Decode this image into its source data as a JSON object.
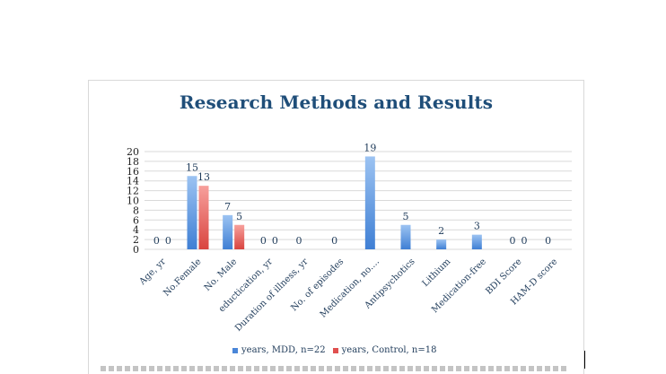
{
  "chart_data": {
    "type": "bar",
    "title": "Research Methods and Results",
    "categories": [
      "Age, yr",
      "No.Female",
      "No. Male",
      "eductication, yr",
      "Duration of illness, yr",
      "No. of episodes",
      "Medication, no....",
      "Antipsychotics",
      "Lithium",
      "Medication-free",
      "BDI Score",
      "HAM-D score"
    ],
    "series": [
      {
        "name": "years, MDD, n=22",
        "values": [
          0,
          15,
          7,
          0,
          0,
          0,
          19,
          5,
          2,
          3,
          0,
          0
        ],
        "labels": [
          "0",
          "15",
          "7",
          "0",
          "0",
          "0",
          "19",
          "5",
          "2",
          "3",
          "0",
          "0"
        ]
      },
      {
        "name": "years, Control, n=18",
        "values": [
          0,
          13,
          5,
          0,
          null,
          null,
          null,
          null,
          null,
          null,
          0,
          null
        ],
        "labels": [
          "0",
          "13",
          "5",
          "0",
          "",
          "",
          "",
          "",
          "",
          "",
          "0",
          ""
        ]
      }
    ],
    "yticks": [
      "0",
      "2",
      "4",
      "6",
      "8",
      "10",
      "12",
      "14",
      "16",
      "18",
      "20"
    ],
    "ylim": [
      0,
      20
    ],
    "grid": true,
    "legend": "bottom",
    "colors": {
      "mdd": "#4a86d8",
      "control": "#e0504f",
      "title": "#1f4e79",
      "grid": "#d9d9d9"
    }
  }
}
